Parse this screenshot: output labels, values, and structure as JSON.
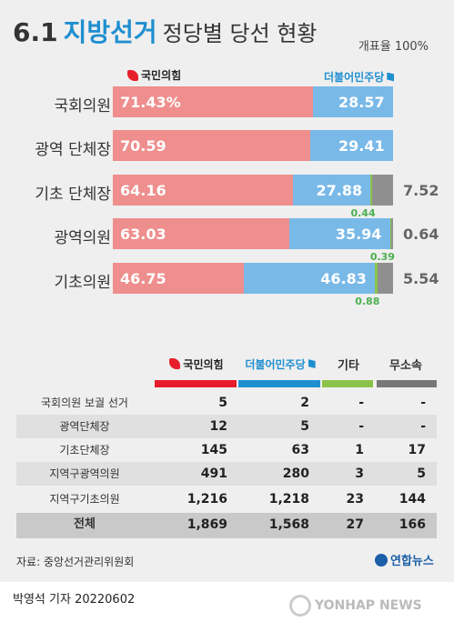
{
  "header": {
    "title_num": "6.1",
    "title_blue": "지방선거",
    "title_rest": "정당별 당선 현황",
    "turnout": "개표율 100%"
  },
  "parties": {
    "ppp": "국민의힘",
    "dem": "더불어민주당",
    "other": "기타",
    "independent": "무소속"
  },
  "colors": {
    "ppp": "#ee8e8d",
    "dem": "#79b9e8",
    "other": "#8f8f8f",
    "minor": "#8bc34a",
    "ppp_head": "#e61e2b",
    "dem_head": "#1f8fd0",
    "other_head": "#8bc34a",
    "ind_head": "#777777"
  },
  "chart_data": {
    "type": "bar",
    "stacked": true,
    "orientation": "horizontal",
    "categories": [
      "국회의원",
      "광역 단체장",
      "기초 단체장",
      "광역의원",
      "기초의원"
    ],
    "series": [
      {
        "name": "국민의힘",
        "values": [
          71.43,
          70.59,
          64.16,
          63.03,
          46.75
        ],
        "labels": [
          "71.43%",
          "70.59",
          "64.16",
          "63.03",
          "46.75"
        ]
      },
      {
        "name": "더불어민주당",
        "values": [
          28.57,
          29.41,
          27.88,
          35.94,
          46.83
        ],
        "labels": [
          "28.57",
          "29.41",
          "27.88",
          "35.94",
          "46.83"
        ]
      },
      {
        "name": "",
        "values": [
          0,
          0,
          0.44,
          0.39,
          0.88
        ],
        "labels": [
          "",
          "",
          "0.44",
          "0.39",
          "0.88"
        ]
      },
      {
        "name": "",
        "values": [
          0,
          0,
          7.52,
          0.64,
          5.54
        ],
        "labels": [
          "",
          "",
          "7.52",
          "0.64",
          "5.54"
        ]
      }
    ]
  },
  "table": {
    "headers": [
      "국민의힘",
      "더불어민주당",
      "기타",
      "무소속"
    ],
    "rows": [
      {
        "label": "국회의원 보궐 선거",
        "values": [
          "5",
          "2",
          "-",
          "-"
        ]
      },
      {
        "label": "광역단체장",
        "values": [
          "12",
          "5",
          "-",
          "-"
        ]
      },
      {
        "label": "기초단체장",
        "values": [
          "145",
          "63",
          "1",
          "17"
        ]
      },
      {
        "label": "지역구광역의원",
        "values": [
          "491",
          "280",
          "3",
          "5"
        ]
      },
      {
        "label": "지역구기초의원",
        "values": [
          "1,216",
          "1,218",
          "23",
          "144"
        ]
      },
      {
        "label": "전체",
        "values": [
          "1,869",
          "1,568",
          "27",
          "166"
        ]
      }
    ]
  },
  "footer": {
    "source": "자료: 중앙선거관리위원회",
    "agency": "연합뉴스",
    "reporter": "박영석 기자  20220602",
    "watermark": "YONHAP NEWS"
  }
}
